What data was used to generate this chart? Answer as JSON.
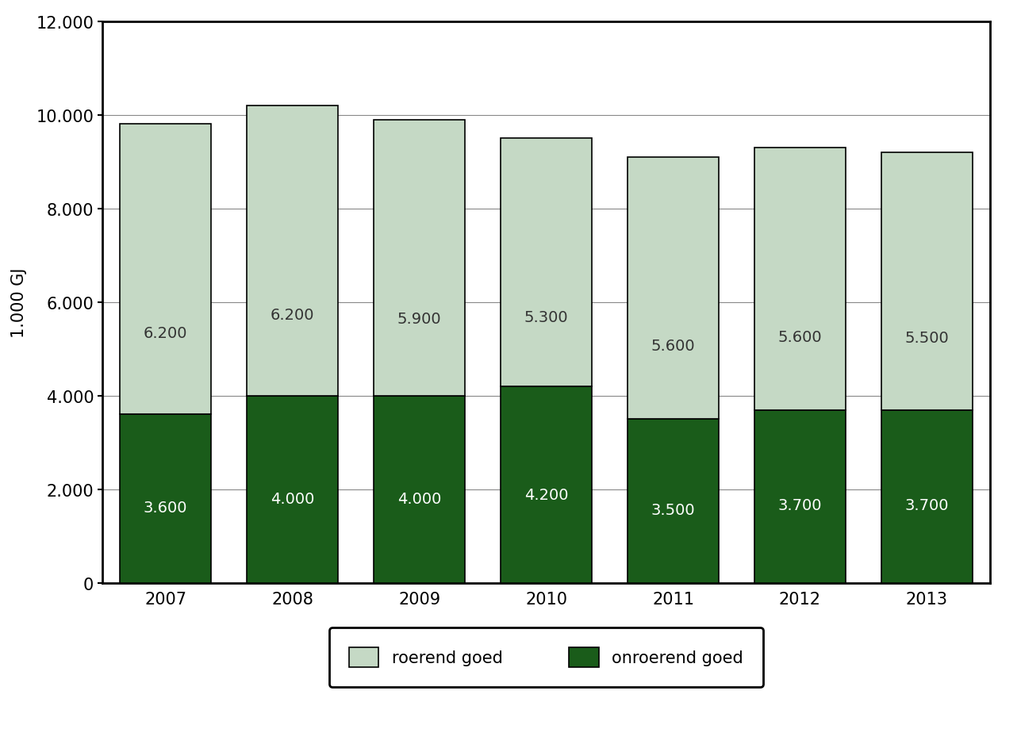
{
  "years": [
    "2007",
    "2008",
    "2009",
    "2010",
    "2011",
    "2012",
    "2013"
  ],
  "onroerend": [
    3600,
    4000,
    4000,
    4200,
    3500,
    3700,
    3700
  ],
  "roerend": [
    6200,
    6200,
    5900,
    5300,
    5600,
    5600,
    5500
  ],
  "color_onroerend": "#1a5c1a",
  "color_roerend": "#c5d9c5",
  "ylabel": "1.000 GJ",
  "ylim": [
    0,
    12000
  ],
  "yticks": [
    0,
    2000,
    4000,
    6000,
    8000,
    10000,
    12000
  ],
  "ytick_labels": [
    "0",
    "2.000",
    "4.000",
    "6.000",
    "8.000",
    "10.000",
    "12.000"
  ],
  "legend_roerend": "roerend goed",
  "legend_onroerend": "onroerend goed",
  "bar_width": 0.72,
  "background_color": "#ffffff",
  "plot_bg_color": "#ffffff",
  "grid_color": "#888888",
  "label_color_onroerend": "#ffffff",
  "label_color_roerend": "#333333",
  "label_fontsize": 14,
  "spine_color": "#000000",
  "spine_linewidth": 2.0,
  "tick_fontsize": 15,
  "ylabel_fontsize": 15
}
